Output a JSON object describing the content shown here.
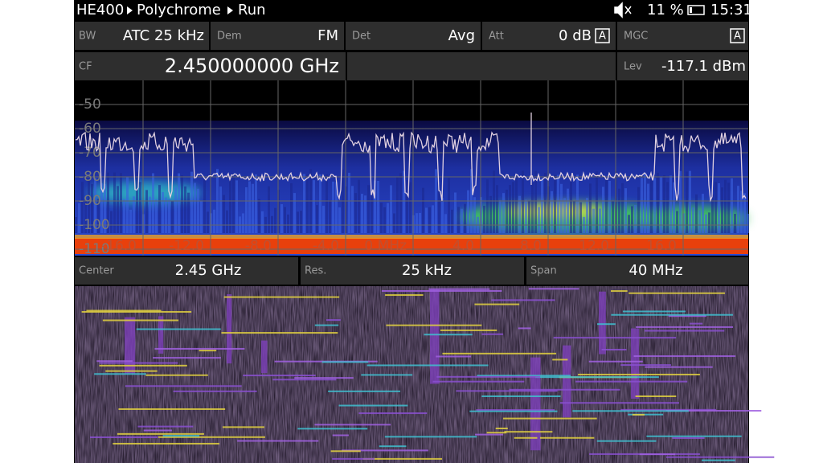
{
  "status_bar": {
    "device": "HE400",
    "mode": "Polychrome",
    "state": "Run",
    "battery": "11 %",
    "time": "15:31"
  },
  "parameters": {
    "bw": {
      "label": "BW",
      "value": "ATC 25 kHz"
    },
    "dem": {
      "label": "Dem",
      "value": "FM"
    },
    "det": {
      "label": "Det",
      "value": "Avg"
    },
    "att": {
      "label": "Att",
      "value": "0 dB",
      "flag": "A"
    },
    "mgc": {
      "label": "MGC",
      "flag": "A"
    },
    "cf": {
      "label": "CF",
      "value": "2.450000000 GHz"
    },
    "lev": {
      "label": "Lev",
      "value": "-117.1 dBm"
    }
  },
  "spectrum": {
    "y_labels": [
      "-50",
      "-60",
      "-70",
      "-80",
      "-90",
      "-100",
      "-110"
    ],
    "x_labels": [
      "-16.0",
      "-12.0",
      "-8.0",
      "-4.0",
      "0 MHz",
      "4.0",
      "8.0",
      "12.0",
      "16.0"
    ]
  },
  "footer": {
    "center": {
      "label": "Center",
      "value": "2.45 GHz"
    },
    "res": {
      "label": "Res.",
      "value": "25 kHz"
    },
    "span": {
      "label": "Span",
      "value": "40 MHz"
    }
  }
}
